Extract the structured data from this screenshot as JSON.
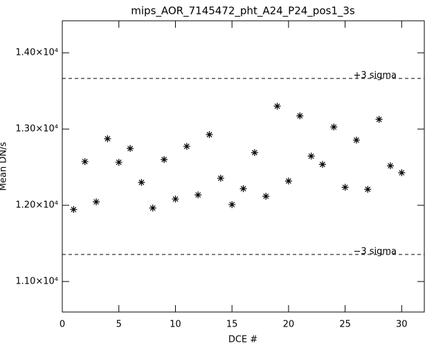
{
  "chart_data": {
    "type": "scatter",
    "title": "mips_AOR_7145472_pht_A24_P24_pos1_3s",
    "xlabel": "DCE #",
    "ylabel": "Mean DN/s",
    "x": [
      1,
      2,
      3,
      4,
      5,
      6,
      7,
      8,
      9,
      10,
      11,
      12,
      13,
      14,
      15,
      16,
      17,
      18,
      19,
      20,
      21,
      22,
      23,
      24,
      25,
      26,
      27,
      28,
      29,
      30
    ],
    "values": [
      11945,
      12573,
      12045,
      12873,
      12564,
      12745,
      12300,
      11964,
      12600,
      12082,
      12773,
      12136,
      12927,
      12355,
      12009,
      12218,
      12691,
      12118,
      13300,
      12318,
      13173,
      12645,
      12536,
      13027,
      12236,
      12855,
      12209,
      13127,
      12518,
      12427
    ],
    "color": "#000000",
    "marker": "asterisk",
    "xlim": [
      0,
      32
    ],
    "xticks": [
      0,
      5,
      10,
      15,
      20,
      25,
      30
    ],
    "ylim": [
      10600,
      14420
    ],
    "yticks": [
      {
        "value": 11000,
        "label": "1.10×10⁴"
      },
      {
        "value": 12000,
        "label": "1.20×10⁴"
      },
      {
        "value": 13000,
        "label": "1.30×10⁴"
      },
      {
        "value": 14000,
        "label": "1.40×10⁴"
      }
    ],
    "hlines": [
      {
        "value": 13664,
        "label": "+3 sigma"
      },
      {
        "value": 11355,
        "label": "−3 sigma"
      }
    ],
    "hline_style": "dashed"
  }
}
